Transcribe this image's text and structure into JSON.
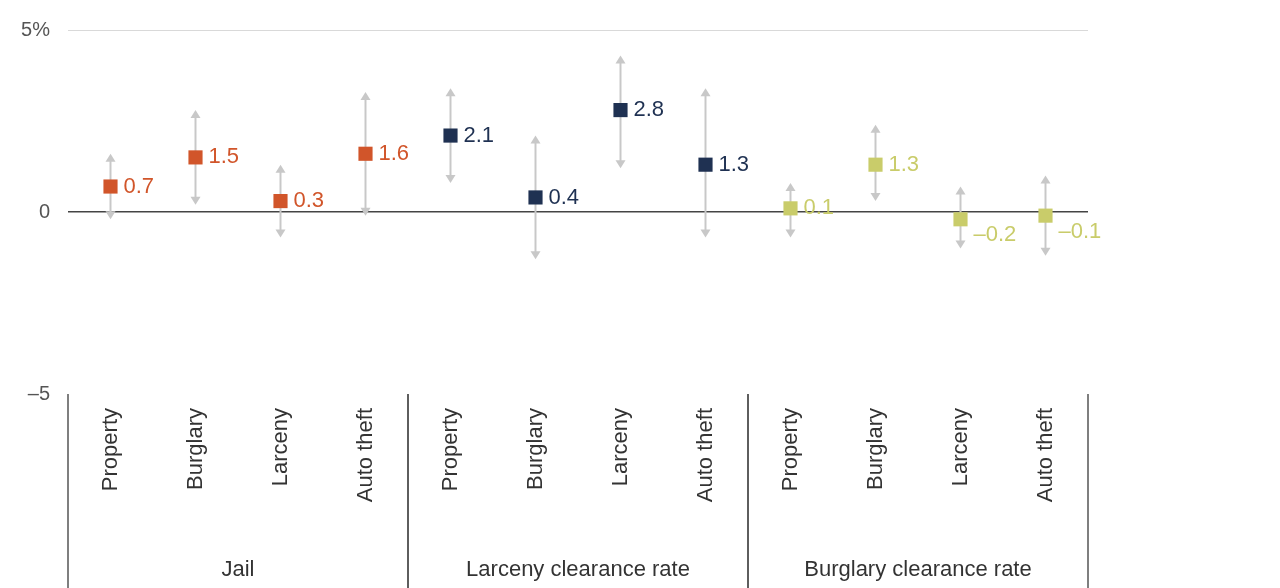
{
  "chart_data": {
    "type": "scatter",
    "categories": [
      "Property",
      "Burglary",
      "Larceny",
      "Auto theft",
      "Property",
      "Burglary",
      "Larceny",
      "Auto theft",
      "Property",
      "Burglary",
      "Larceny",
      "Auto theft"
    ],
    "series": [
      {
        "name": "Jail",
        "color": "#d1552a",
        "values": [
          0.7,
          1.5,
          0.3,
          1.6,
          null,
          null,
          null,
          null,
          null,
          null,
          null,
          null
        ],
        "value_labels": [
          "0.7",
          "1.5",
          "0.3",
          "1.6",
          null,
          null,
          null,
          null,
          null,
          null,
          null,
          null
        ],
        "ci_low": [
          -0.2,
          0.2,
          -0.7,
          -0.1,
          null,
          null,
          null,
          null,
          null,
          null,
          null,
          null
        ],
        "ci_high": [
          1.6,
          2.8,
          1.3,
          3.3,
          null,
          null,
          null,
          null,
          null,
          null,
          null,
          null
        ]
      },
      {
        "name": "Larceny clearance rate",
        "color": "#1f3152",
        "values": [
          null,
          null,
          null,
          null,
          2.1,
          0.4,
          2.8,
          1.3,
          null,
          null,
          null,
          null
        ],
        "value_labels": [
          null,
          null,
          null,
          null,
          "2.1",
          "0.4",
          "2.8",
          "1.3",
          null,
          null,
          null,
          null
        ],
        "ci_low": [
          null,
          null,
          null,
          null,
          0.8,
          -1.3,
          1.2,
          -0.7,
          null,
          null,
          null,
          null
        ],
        "ci_high": [
          null,
          null,
          null,
          null,
          3.4,
          2.1,
          4.3,
          3.4,
          null,
          null,
          null,
          null
        ]
      },
      {
        "name": "Burglary clearance rate",
        "color": "#c9cc6a",
        "values": [
          null,
          null,
          null,
          null,
          null,
          null,
          null,
          null,
          0.1,
          1.3,
          -0.2,
          -0.1
        ],
        "value_labels": [
          null,
          null,
          null,
          null,
          null,
          null,
          null,
          null,
          "0.1",
          "1.3",
          "–0.2",
          "–0.1"
        ],
        "ci_low": [
          null,
          null,
          null,
          null,
          null,
          null,
          null,
          null,
          -0.7,
          0.3,
          -1.0,
          -1.2
        ],
        "ci_high": [
          null,
          null,
          null,
          null,
          null,
          null,
          null,
          null,
          0.8,
          2.4,
          0.7,
          1.0
        ]
      }
    ],
    "ylim": [
      -5,
      5
    ],
    "yticks": [
      {
        "value": -5,
        "label": "–5"
      },
      0,
      {
        "value": 5,
        "label": "5%"
      }
    ],
    "grid": true,
    "data_labels": true,
    "marker": "square"
  }
}
